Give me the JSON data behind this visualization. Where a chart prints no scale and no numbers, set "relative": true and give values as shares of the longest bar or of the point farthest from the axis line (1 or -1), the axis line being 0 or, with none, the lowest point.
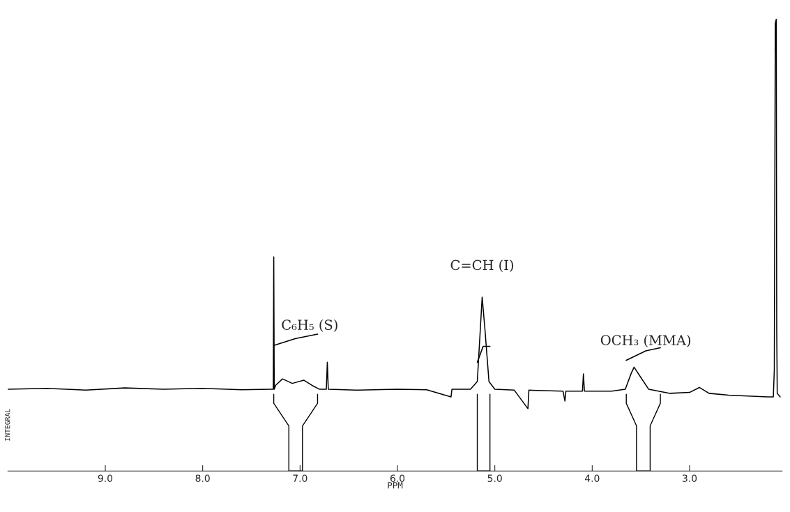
{
  "chart_data": {
    "type": "line",
    "relative": true,
    "xlabel": "PPM",
    "ylabel": "INTEGRAL",
    "xlim": [
      10.0,
      2.05
    ],
    "xticks": [
      {
        "value": 9,
        "label": "9.0"
      },
      {
        "value": 8,
        "label": "8.0"
      },
      {
        "value": 7,
        "label": "7.0"
      },
      {
        "value": 6,
        "label": "6.0"
      },
      {
        "value": 5,
        "label": "5.0"
      },
      {
        "value": 4,
        "label": "4.0"
      },
      {
        "value": 3,
        "label": "3.0"
      }
    ],
    "grid": false,
    "legend": false,
    "marker": "none",
    "line_style": "solid",
    "series": [
      {
        "color": "#000000",
        "x": [
          10.0,
          9.6,
          9.2,
          8.8,
          8.4,
          8.0,
          7.6,
          7.3,
          7.275,
          7.27,
          7.265,
          7.25,
          7.18,
          7.08,
          6.96,
          6.88,
          6.8,
          6.73,
          6.72,
          6.71,
          6.4,
          6.0,
          5.7,
          5.45,
          5.44,
          5.25,
          5.18,
          5.15,
          5.13,
          5.1,
          5.06,
          5.0,
          4.8,
          4.66,
          4.65,
          4.3,
          4.28,
          4.27,
          4.1,
          4.09,
          4.08,
          3.8,
          3.66,
          3.6,
          3.57,
          3.5,
          3.42,
          3.2,
          3.0,
          2.9,
          2.8,
          2.6,
          2.4,
          2.2,
          2.14,
          2.13,
          2.12,
          2.11,
          2.105,
          2.1,
          2.07
        ],
        "values": [
          0.181,
          0.183,
          0.179,
          0.184,
          0.181,
          0.183,
          0.18,
          0.181,
          0.181,
          0.474,
          0.181,
          0.19,
          0.204,
          0.194,
          0.201,
          0.19,
          0.181,
          0.181,
          0.241,
          0.181,
          0.179,
          0.181,
          0.18,
          0.164,
          0.181,
          0.181,
          0.198,
          0.31,
          0.385,
          0.31,
          0.198,
          0.181,
          0.179,
          0.138,
          0.179,
          0.177,
          0.155,
          0.177,
          0.177,
          0.215,
          0.177,
          0.177,
          0.181,
          0.216,
          0.23,
          0.207,
          0.181,
          0.172,
          0.174,
          0.185,
          0.172,
          0.168,
          0.166,
          0.164,
          0.164,
          0.224,
          0.991,
          1.0,
          0.31,
          0.172,
          0.164
        ]
      },
      {
        "color": "#000000",
        "x": [
          7.27,
          7.05,
          6.82,
          6.0,
          5.18,
          5.12,
          5.05,
          4.0,
          3.65,
          3.45,
          3.3
        ],
        "values": [
          0.278,
          0.293,
          0.303,
          null,
          0.241,
          0.276,
          0.276,
          null,
          0.245,
          0.266,
          0.273
        ]
      }
    ],
    "annotations": [
      {
        "text": "C₆H₅ (S)",
        "x": 6.9,
        "y": 0.3
      },
      {
        "text": "C=CH (I)",
        "x": 5.13,
        "y": 0.385
      },
      {
        "text": "OCH₃ (MMA)",
        "x": 3.45,
        "y": 0.266
      }
    ]
  }
}
